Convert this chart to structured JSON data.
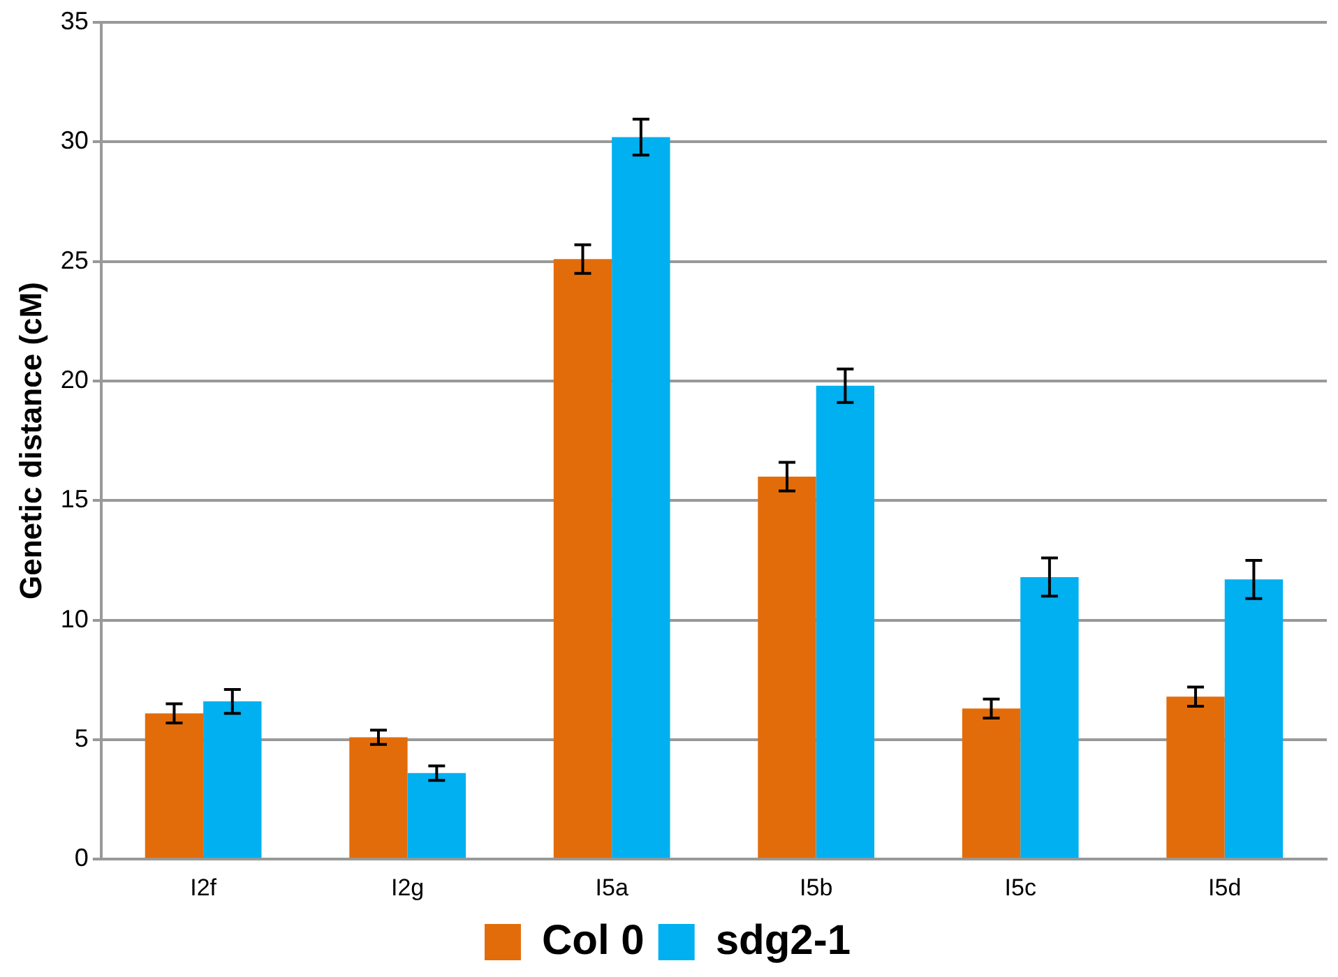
{
  "chart_data": {
    "type": "bar",
    "ylabel": "Genetic distance (cM)",
    "categories": [
      "I2f",
      "I2g",
      "I5a",
      "I5b",
      "I5c",
      "I5d"
    ],
    "series": [
      {
        "name": "Col 0",
        "color": "#e36c0a",
        "values": [
          6.1,
          5.1,
          25.1,
          16.0,
          6.3,
          6.8
        ],
        "errors": [
          0.4,
          0.3,
          0.6,
          0.6,
          0.4,
          0.4
        ]
      },
      {
        "name": "sdg2-1",
        "color": "#00b0f0",
        "values": [
          6.6,
          3.6,
          30.2,
          19.8,
          11.8,
          11.7
        ],
        "errors": [
          0.5,
          0.3,
          0.75,
          0.7,
          0.8,
          0.8
        ]
      }
    ],
    "ylim": [
      0,
      35
    ],
    "yticks": [
      0,
      5,
      10,
      15,
      20,
      25,
      30,
      35
    ],
    "grid": "y",
    "legend": "bottom"
  }
}
